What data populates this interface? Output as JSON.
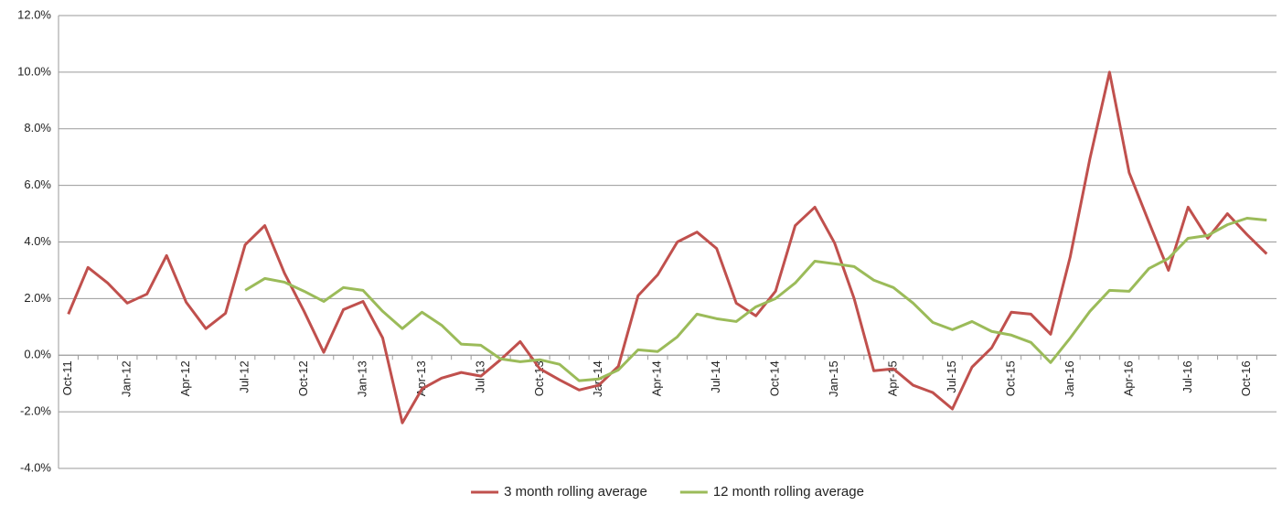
{
  "chart_data": {
    "type": "line",
    "categories": [
      "Oct-11",
      null,
      null,
      "Jan-12",
      null,
      null,
      "Apr-12",
      null,
      null,
      "Jul-12",
      null,
      null,
      "Oct-12",
      null,
      null,
      "Jan-13",
      null,
      null,
      "Apr-13",
      null,
      null,
      "Jul-13",
      null,
      null,
      "Oct-13",
      null,
      null,
      "Jan-14",
      null,
      null,
      "Apr-14",
      null,
      null,
      "Jul-14",
      null,
      null,
      "Oct-14",
      null,
      null,
      "Jan-15",
      null,
      null,
      "Apr-15",
      null,
      null,
      "Jul-15",
      null,
      null,
      "Oct-15",
      null,
      null,
      "Jan-16",
      null,
      null,
      "Apr-16",
      null,
      null,
      "Jul-16",
      null,
      null,
      "Oct-16",
      null
    ],
    "series": [
      {
        "name": "3 month rolling average",
        "color": "#c0504d",
        "values": [
          1.45,
          3.1,
          2.55,
          1.84,
          2.16,
          3.52,
          1.87,
          0.94,
          1.48,
          3.9,
          4.58,
          2.9,
          1.55,
          0.1,
          1.61,
          1.9,
          0.61,
          -2.39,
          -1.19,
          -0.81,
          -0.61,
          -0.74,
          -0.16,
          0.48,
          -0.48,
          -0.87,
          -1.23,
          -1.06,
          -0.39,
          2.1,
          2.84,
          4.0,
          4.35,
          3.77,
          1.84,
          1.39,
          2.26,
          4.58,
          5.23,
          3.97,
          2.0,
          -0.55,
          -0.48,
          -1.06,
          -1.32,
          -1.9,
          -0.42,
          0.26,
          1.52,
          1.45,
          0.74,
          3.48,
          6.94,
          10.0,
          6.45,
          4.71,
          3.0,
          5.23,
          4.13,
          5.0,
          4.26,
          3.58
        ]
      },
      {
        "name": "12 month rolling average",
        "color": "#9bbb59",
        "values": [
          null,
          null,
          null,
          null,
          null,
          null,
          null,
          null,
          null,
          2.29,
          2.71,
          2.58,
          2.26,
          1.9,
          2.39,
          2.29,
          1.55,
          0.94,
          1.52,
          1.06,
          0.39,
          0.35,
          -0.13,
          -0.23,
          -0.16,
          -0.32,
          -0.9,
          -0.84,
          -0.52,
          0.19,
          0.13,
          0.65,
          1.45,
          1.29,
          1.19,
          1.71,
          2.0,
          2.55,
          3.32,
          3.23,
          3.13,
          2.65,
          2.39,
          1.84,
          1.16,
          0.9,
          1.19,
          0.84,
          0.71,
          0.45,
          -0.26,
          0.61,
          1.55,
          2.29,
          2.26,
          3.06,
          3.42,
          4.13,
          4.23,
          4.61,
          4.84,
          4.77
        ]
      }
    ],
    "ylim": [
      -4,
      12
    ],
    "yticks": [
      {
        "value": -4,
        "label": "-4.0%"
      },
      {
        "value": -2,
        "label": "-2.0%"
      },
      {
        "value": 0,
        "label": "0.0%"
      },
      {
        "value": 2,
        "label": "2.0%"
      },
      {
        "value": 4,
        "label": "4.0%"
      },
      {
        "value": 6,
        "label": "6.0%"
      },
      {
        "value": 8,
        "label": "8.0%"
      },
      {
        "value": 10,
        "label": "10.0%"
      },
      {
        "value": 12,
        "label": "12.0%"
      }
    ],
    "grid": true,
    "legend": "bottom"
  }
}
